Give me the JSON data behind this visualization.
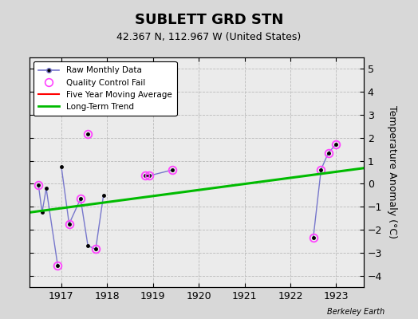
{
  "title": "SUBLETT GRD STN",
  "subtitle": "42.367 N, 112.967 W (United States)",
  "ylabel": "Temperature Anomaly (°C)",
  "watermark": "Berkeley Earth",
  "xlim": [
    1916.3,
    1923.6
  ],
  "ylim": [
    -4.5,
    5.5
  ],
  "yticks": [
    -4,
    -3,
    -2,
    -1,
    0,
    1,
    2,
    3,
    4,
    5
  ],
  "xticks": [
    1917,
    1918,
    1919,
    1920,
    1921,
    1922,
    1923
  ],
  "background_color": "#d8d8d8",
  "plot_background": "#ebebeb",
  "segments": [
    {
      "x": [
        1916.5,
        1916.58,
        1916.67,
        1916.92
      ],
      "y": [
        -0.05,
        -1.25,
        -0.2,
        -3.55
      ]
    },
    {
      "x": [
        1917.0,
        1917.17,
        1917.42,
        1917.58,
        1917.75,
        1917.92
      ],
      "y": [
        0.75,
        -1.75,
        -0.65,
        -2.7,
        -2.85,
        -0.5
      ]
    },
    {
      "x": [
        1917.58
      ],
      "y": [
        2.15
      ]
    },
    {
      "x": [
        1918.83,
        1918.92,
        1919.42
      ],
      "y": [
        0.35,
        0.35,
        0.6
      ]
    },
    {
      "x": [
        1922.5,
        1922.67,
        1922.83,
        1923.0
      ],
      "y": [
        -2.35,
        0.62,
        1.35,
        1.72
      ]
    }
  ],
  "isolated_x": [
    1917.58
  ],
  "isolated_y": [
    2.15
  ],
  "qc_fail_x": [
    1916.5,
    1916.92,
    1917.17,
    1917.42,
    1917.75,
    1917.58,
    1918.83,
    1918.92,
    1919.42,
    1922.5,
    1922.67,
    1922.83,
    1923.0
  ],
  "qc_fail_y": [
    -0.05,
    -3.55,
    -1.75,
    -0.65,
    -2.85,
    2.15,
    0.35,
    0.35,
    0.6,
    -2.35,
    0.62,
    1.35,
    1.72
  ],
  "trend_x": [
    1916.3,
    1923.6
  ],
  "trend_y": [
    -1.25,
    0.68
  ],
  "raw_line_color": "#7777cc",
  "raw_marker_color": "#000000",
  "qc_color": "#ff44ff",
  "trend_color": "#00bb00",
  "mavg_color": "#ff0000",
  "legend_loc": "upper left",
  "grid_color": "#bbbbbb",
  "title_fontsize": 13,
  "subtitle_fontsize": 9
}
